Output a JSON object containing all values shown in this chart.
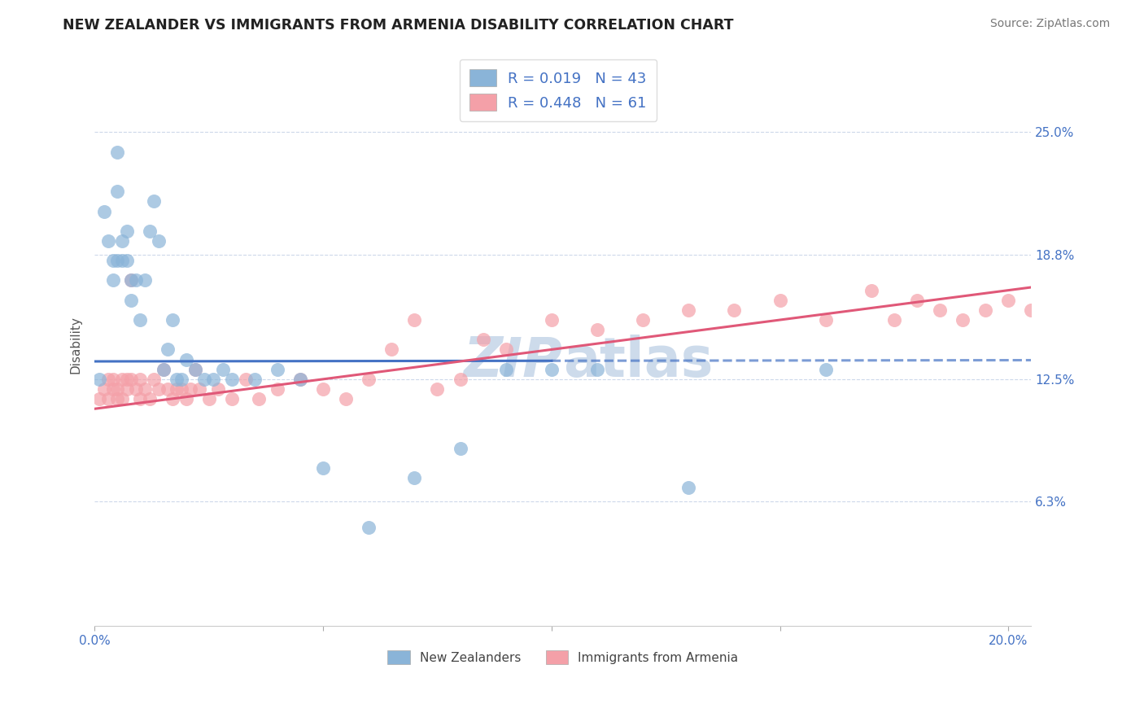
{
  "title": "NEW ZEALANDER VS IMMIGRANTS FROM ARMENIA DISABILITY CORRELATION CHART",
  "source": "Source: ZipAtlas.com",
  "ylabel": "Disability",
  "xlim": [
    0.0,
    0.205
  ],
  "ylim": [
    0.0,
    0.285
  ],
  "yticks": [
    0.0,
    0.063,
    0.125,
    0.188,
    0.25
  ],
  "ytick_labels": [
    "",
    "6.3%",
    "12.5%",
    "18.8%",
    "25.0%"
  ],
  "xticks": [
    0.0,
    0.05,
    0.1,
    0.15,
    0.2
  ],
  "xtick_labels": [
    "0.0%",
    "",
    "",
    "",
    "20.0%"
  ],
  "R_nz": 0.019,
  "N_nz": 43,
  "R_arm": 0.448,
  "N_arm": 61,
  "nz_color": "#8ab4d8",
  "arm_color": "#f4a0a8",
  "nz_line_color": "#4472c4",
  "arm_line_color": "#e05878",
  "background_color": "#ffffff",
  "grid_color": "#c8d4e8",
  "watermark_color": "#c5d5e8",
  "legend_label_nz": "New Zealanders",
  "legend_label_arm": "Immigrants from Armenia",
  "nz_x": [
    0.001,
    0.002,
    0.003,
    0.004,
    0.004,
    0.005,
    0.005,
    0.005,
    0.006,
    0.006,
    0.007,
    0.007,
    0.008,
    0.008,
    0.009,
    0.01,
    0.011,
    0.012,
    0.013,
    0.014,
    0.015,
    0.016,
    0.017,
    0.018,
    0.019,
    0.02,
    0.022,
    0.024,
    0.026,
    0.028,
    0.03,
    0.035,
    0.04,
    0.045,
    0.05,
    0.06,
    0.07,
    0.08,
    0.09,
    0.1,
    0.11,
    0.13,
    0.16
  ],
  "nz_y": [
    0.125,
    0.21,
    0.195,
    0.185,
    0.175,
    0.185,
    0.22,
    0.24,
    0.195,
    0.185,
    0.2,
    0.185,
    0.175,
    0.165,
    0.175,
    0.155,
    0.175,
    0.2,
    0.215,
    0.195,
    0.13,
    0.14,
    0.155,
    0.125,
    0.125,
    0.135,
    0.13,
    0.125,
    0.125,
    0.13,
    0.125,
    0.125,
    0.13,
    0.125,
    0.08,
    0.05,
    0.075,
    0.09,
    0.13,
    0.13,
    0.13,
    0.07,
    0.13
  ],
  "arm_x": [
    0.001,
    0.002,
    0.003,
    0.003,
    0.004,
    0.004,
    0.005,
    0.005,
    0.006,
    0.006,
    0.007,
    0.007,
    0.008,
    0.008,
    0.009,
    0.01,
    0.01,
    0.011,
    0.012,
    0.013,
    0.014,
    0.015,
    0.016,
    0.017,
    0.018,
    0.019,
    0.02,
    0.021,
    0.022,
    0.023,
    0.025,
    0.027,
    0.03,
    0.033,
    0.036,
    0.04,
    0.045,
    0.05,
    0.055,
    0.06,
    0.065,
    0.07,
    0.075,
    0.08,
    0.085,
    0.09,
    0.1,
    0.11,
    0.12,
    0.13,
    0.14,
    0.15,
    0.16,
    0.17,
    0.175,
    0.18,
    0.185,
    0.19,
    0.195,
    0.2,
    0.205
  ],
  "arm_y": [
    0.115,
    0.12,
    0.125,
    0.115,
    0.125,
    0.12,
    0.12,
    0.115,
    0.125,
    0.115,
    0.125,
    0.12,
    0.175,
    0.125,
    0.12,
    0.115,
    0.125,
    0.12,
    0.115,
    0.125,
    0.12,
    0.13,
    0.12,
    0.115,
    0.12,
    0.12,
    0.115,
    0.12,
    0.13,
    0.12,
    0.115,
    0.12,
    0.115,
    0.125,
    0.115,
    0.12,
    0.125,
    0.12,
    0.115,
    0.125,
    0.14,
    0.155,
    0.12,
    0.125,
    0.145,
    0.14,
    0.155,
    0.15,
    0.155,
    0.16,
    0.16,
    0.165,
    0.155,
    0.17,
    0.155,
    0.165,
    0.16,
    0.155,
    0.16,
    0.165,
    0.16
  ]
}
